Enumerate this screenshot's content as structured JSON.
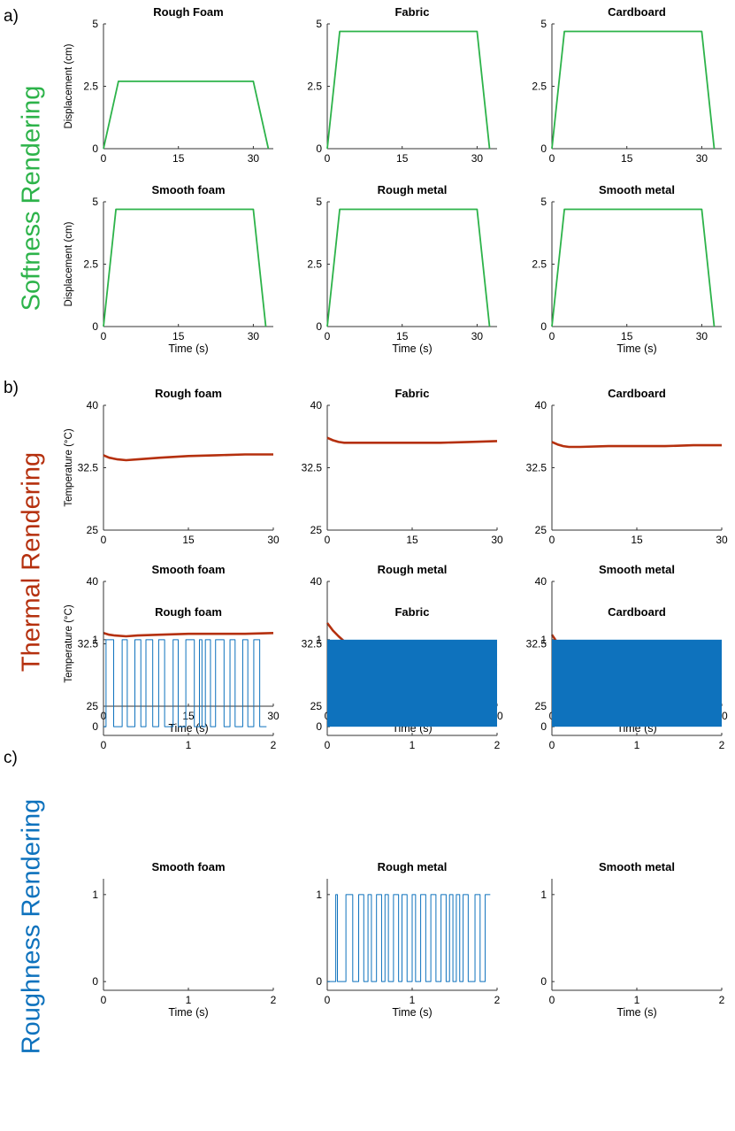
{
  "sections": [
    {
      "letter": "a)",
      "row_label": "Softness Rendering",
      "color": "#2db34a",
      "kind": "softness",
      "ylabel": "Displacement (cm)",
      "xlabel": "Time (s)",
      "xlim": [
        0,
        34
      ],
      "ylim": [
        0,
        5
      ],
      "xticks": [
        "0",
        "15",
        "30"
      ],
      "yticks": [
        "0",
        "2.5",
        "5"
      ],
      "titles": [
        "Rough Foam",
        "Fabric",
        "Cardboard",
        "Smooth foam",
        "Rough metal",
        "Smooth metal"
      ]
    },
    {
      "letter": "b)",
      "row_label": "Thermal Rendering",
      "color": "#b5300e",
      "kind": "thermal",
      "ylabel": "Temperature (°C)",
      "xlabel": "Time (s)",
      "xlim": [
        0,
        30
      ],
      "ylim": [
        25,
        40
      ],
      "xticks": [
        "0",
        "15",
        "30"
      ],
      "yticks": [
        "25",
        "32.5",
        "40"
      ],
      "titles": [
        "Rough foam",
        "Fabric",
        "Cardboard",
        "Smooth foam",
        "Rough metal",
        "Smooth metal"
      ]
    },
    {
      "letter": "c)",
      "row_label": "Roughness Rendering",
      "color": "#0e72bd",
      "kind": "roughness",
      "ylabel": "",
      "xlabel": "Time (s)",
      "xlim": [
        0,
        2
      ],
      "ylim": [
        -0.1,
        1.1
      ],
      "xticks": [
        "0",
        "1",
        "2"
      ],
      "yticks": [
        "0",
        "1"
      ],
      "titles": [
        "Rough foam",
        "Fabric",
        "Cardboard",
        "Smooth foam",
        "Rough metal",
        "Smooth metal"
      ]
    }
  ],
  "chart_data": [
    {
      "type": "line",
      "title": "Rough Foam",
      "ylabel": "Displacement (cm)",
      "xlim": [
        0,
        34
      ],
      "ylim": [
        0,
        5
      ],
      "x": [
        0,
        3,
        30,
        33
      ],
      "y": [
        0,
        2.7,
        2.7,
        0
      ]
    },
    {
      "type": "line",
      "title": "Fabric",
      "xlim": [
        0,
        34
      ],
      "ylim": [
        0,
        5
      ],
      "x": [
        0,
        2.5,
        30,
        32.5
      ],
      "y": [
        0,
        4.7,
        4.7,
        0
      ]
    },
    {
      "type": "line",
      "title": "Cardboard",
      "xlim": [
        0,
        34
      ],
      "ylim": [
        0,
        5
      ],
      "x": [
        0,
        2.5,
        30,
        32.5
      ],
      "y": [
        0,
        4.7,
        4.7,
        0
      ]
    },
    {
      "type": "line",
      "title": "Smooth foam",
      "ylabel": "Displacement (cm)",
      "xlabel": "Time (s)",
      "xlim": [
        0,
        34
      ],
      "ylim": [
        0,
        5
      ],
      "x": [
        0,
        2.5,
        30,
        32.5
      ],
      "y": [
        0,
        4.7,
        4.7,
        0
      ]
    },
    {
      "type": "line",
      "title": "Rough metal",
      "xlabel": "Time (s)",
      "xlim": [
        0,
        34
      ],
      "ylim": [
        0,
        5
      ],
      "x": [
        0,
        2.5,
        30,
        32.5
      ],
      "y": [
        0,
        4.7,
        4.7,
        0
      ]
    },
    {
      "type": "line",
      "title": "Smooth metal",
      "xlabel": "Time (s)",
      "xlim": [
        0,
        34
      ],
      "ylim": [
        0,
        5
      ],
      "x": [
        0,
        2.5,
        30,
        32.5
      ],
      "y": [
        0,
        4.7,
        4.7,
        0
      ]
    },
    {
      "type": "line",
      "title": "Rough foam",
      "ylabel": "Temperature (°C)",
      "xlim": [
        0,
        30
      ],
      "ylim": [
        25,
        40
      ],
      "x": [
        0,
        1,
        2.5,
        4,
        6,
        10,
        15,
        20,
        25,
        30
      ],
      "y": [
        34.0,
        33.7,
        33.5,
        33.4,
        33.5,
        33.7,
        33.9,
        34.0,
        34.1,
        34.1
      ]
    },
    {
      "type": "line",
      "title": "Fabric",
      "xlim": [
        0,
        30
      ],
      "ylim": [
        25,
        40
      ],
      "x": [
        0,
        1,
        2,
        3,
        5,
        10,
        15,
        20,
        25,
        30
      ],
      "y": [
        36.1,
        35.8,
        35.6,
        35.5,
        35.5,
        35.5,
        35.5,
        35.5,
        35.6,
        35.7
      ]
    },
    {
      "type": "line",
      "title": "Cardboard",
      "xlim": [
        0,
        30
      ],
      "ylim": [
        25,
        40
      ],
      "x": [
        0,
        1,
        2,
        3,
        5,
        10,
        15,
        20,
        25,
        30
      ],
      "y": [
        35.6,
        35.3,
        35.1,
        35.0,
        35.0,
        35.1,
        35.1,
        35.1,
        35.2,
        35.2
      ]
    },
    {
      "type": "line",
      "title": "Smooth foam",
      "ylabel": "Temperature (°C)",
      "xlabel": "Time (s)",
      "xlim": [
        0,
        30
      ],
      "ylim": [
        25,
        40
      ],
      "x": [
        0,
        1,
        2,
        4,
        6,
        10,
        15,
        20,
        25,
        30
      ],
      "y": [
        33.8,
        33.6,
        33.5,
        33.4,
        33.5,
        33.6,
        33.7,
        33.7,
        33.7,
        33.8
      ]
    },
    {
      "type": "line",
      "title": "Rough metal",
      "xlabel": "Time (s)",
      "xlim": [
        0,
        30
      ],
      "ylim": [
        25,
        40
      ],
      "x": [
        0,
        1,
        2,
        3,
        4,
        6,
        8,
        10,
        15,
        20,
        25,
        30
      ],
      "y": [
        35.0,
        34.1,
        33.4,
        32.8,
        32.4,
        31.8,
        31.4,
        31.1,
        30.6,
        30.3,
        30.1,
        29.9
      ]
    },
    {
      "type": "line",
      "title": "Smooth metal",
      "xlabel": "Time (s)",
      "xlim": [
        0,
        30
      ],
      "ylim": [
        25,
        40
      ],
      "x": [
        0,
        1,
        2,
        3,
        4,
        6,
        8,
        10,
        15,
        20,
        25,
        30
      ],
      "y": [
        33.6,
        32.6,
        31.9,
        31.4,
        31.0,
        30.5,
        30.1,
        29.9,
        29.5,
        29.2,
        29.0,
        28.8
      ]
    },
    {
      "type": "line",
      "title": "Rough foam",
      "xlim": [
        0,
        2
      ],
      "ylim": [
        -0.1,
        1.1
      ],
      "x": [
        0,
        0.03,
        0.1,
        0.12,
        0.2,
        0.22,
        0.26,
        0.28,
        0.35,
        0.37,
        0.42,
        0.44,
        0.48,
        0.5,
        0.55,
        0.58,
        0.63,
        0.65,
        0.7,
        0.72,
        0.8,
        0.82,
        0.86,
        0.88,
        0.95,
        0.97,
        1.05,
        1.07,
        1.12,
        1.13,
        1.15,
        1.16,
        1.19,
        1.2,
        1.24,
        1.26,
        1.3,
        1.32,
        1.4,
        1.42,
        1.47,
        1.49,
        1.53,
        1.55,
        1.62,
        1.64,
        1.68,
        1.7,
        1.75,
        1.77,
        1.82,
        1.84,
        1.92
      ],
      "y": [
        0,
        1,
        1,
        0,
        0,
        1,
        1,
        0,
        0,
        1,
        1,
        0,
        0,
        1,
        1,
        0,
        0,
        1,
        1,
        0,
        0,
        1,
        1,
        0,
        0,
        1,
        1,
        0,
        0,
        1,
        1,
        0,
        0,
        1,
        1,
        0,
        0,
        1,
        1,
        0,
        0,
        1,
        1,
        0,
        0,
        1,
        1,
        0,
        0,
        1,
        1,
        0,
        0
      ]
    },
    {
      "type": "area",
      "title": "Fabric",
      "xlim": [
        0,
        2
      ],
      "ylim": [
        -0.1,
        1.1
      ],
      "x": [
        0,
        2
      ],
      "y": [
        1,
        1
      ]
    },
    {
      "type": "area",
      "title": "Cardboard",
      "xlim": [
        0,
        2
      ],
      "ylim": [
        -0.1,
        1.1
      ],
      "x": [
        0,
        2
      ],
      "y": [
        1,
        1
      ]
    },
    {
      "type": "line",
      "title": "Smooth foam",
      "xlabel": "Time (s)",
      "xlim": [
        0,
        2
      ],
      "ylim": [
        -0.1,
        1.1
      ],
      "x": [],
      "y": []
    },
    {
      "type": "line",
      "title": "Rough metal",
      "xlabel": "Time (s)",
      "xlim": [
        0,
        2
      ],
      "ylim": [
        -0.1,
        1.1
      ],
      "x": [
        0,
        0.1,
        0.12,
        0.2,
        0.22,
        0.28,
        0.3,
        0.35,
        0.37,
        0.41,
        0.43,
        0.46,
        0.48,
        0.5,
        0.52,
        0.56,
        0.58,
        0.62,
        0.64,
        0.66,
        0.68,
        0.7,
        0.72,
        0.76,
        0.78,
        0.82,
        0.84,
        0.86,
        0.88,
        0.92,
        0.94,
        0.98,
        1.0,
        1.02,
        1.04,
        1.08,
        1.1,
        1.14,
        1.16,
        1.2,
        1.22,
        1.26,
        1.28,
        1.32,
        1.34,
        1.38,
        1.4,
        1.42,
        1.44,
        1.46,
        1.48,
        1.5,
        1.52,
        1.54,
        1.56,
        1.58,
        1.6,
        1.64,
        1.66,
        1.72,
        1.74,
        1.78,
        1.8,
        1.84,
        1.86,
        1.92
      ],
      "y": [
        0,
        1,
        0,
        0,
        1,
        1,
        0,
        0,
        1,
        1,
        0,
        0,
        1,
        1,
        0,
        0,
        1,
        1,
        0,
        0,
        1,
        1,
        0,
        0,
        1,
        1,
        0,
        0,
        1,
        1,
        0,
        0,
        1,
        1,
        0,
        0,
        1,
        1,
        0,
        0,
        1,
        1,
        0,
        0,
        1,
        1,
        0,
        0,
        1,
        1,
        0,
        0,
        1,
        1,
        0,
        0,
        1,
        1,
        0,
        0,
        1,
        1,
        0,
        0,
        1,
        1
      ]
    },
    {
      "type": "line",
      "title": "Smooth metal",
      "xlabel": "Time (s)",
      "xlim": [
        0,
        2
      ],
      "ylim": [
        -0.1,
        1.1
      ],
      "x": [],
      "y": []
    }
  ]
}
